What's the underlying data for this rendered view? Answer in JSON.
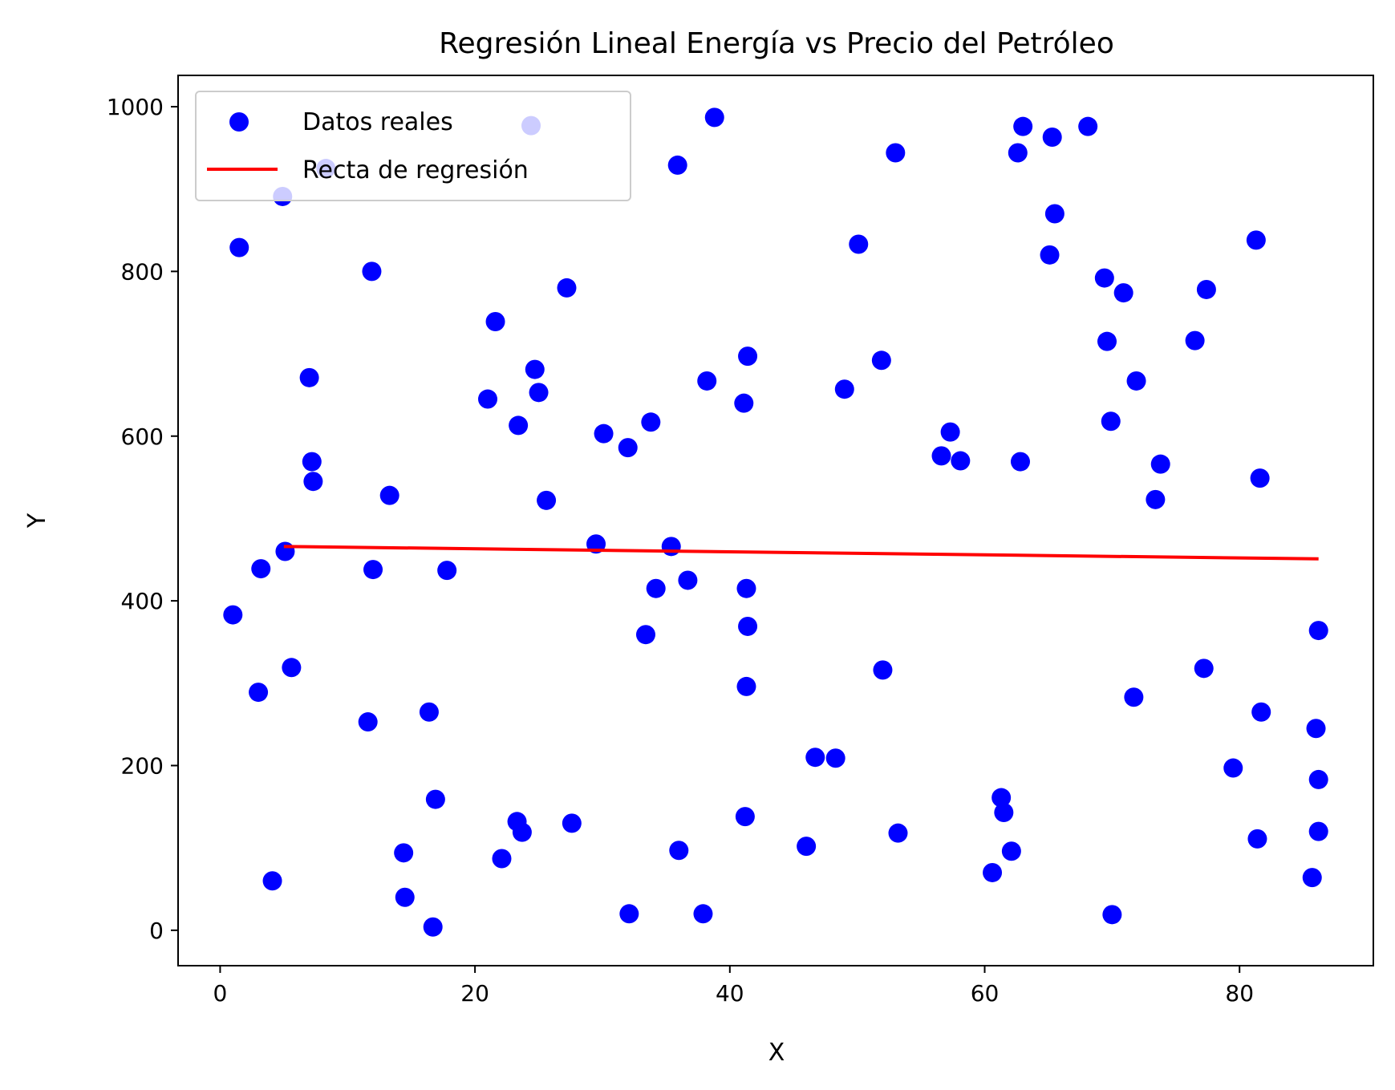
{
  "chart_data": {
    "type": "scatter",
    "title": "Regresión Lineal Energía vs Precio del Petróleo",
    "xlabel": "X",
    "ylabel": "Y",
    "xlim": [
      -3.3,
      90.5
    ],
    "ylim": [
      -43,
      1038
    ],
    "xticks": [
      0,
      20,
      40,
      60,
      80
    ],
    "yticks": [
      0,
      200,
      400,
      600,
      800,
      1000
    ],
    "xtick_labels": [
      "0",
      "20",
      "40",
      "60",
      "80"
    ],
    "ytick_labels": [
      "0",
      "200",
      "400",
      "600",
      "800",
      "1000"
    ],
    "legend_position": "top-left",
    "colors": {
      "points": "#0000ff",
      "line": "#ff0000"
    },
    "series": [
      {
        "name": "Datos reales",
        "kind": "scatter",
        "points": [
          [
            1.0,
            383
          ],
          [
            1.5,
            829
          ],
          [
            3.0,
            289
          ],
          [
            3.2,
            439
          ],
          [
            4.1,
            60
          ],
          [
            4.9,
            891
          ],
          [
            5.1,
            460
          ],
          [
            5.6,
            319
          ],
          [
            7.0,
            671
          ],
          [
            7.2,
            569
          ],
          [
            7.3,
            545
          ],
          [
            8.3,
            925
          ],
          [
            11.6,
            253
          ],
          [
            11.9,
            800
          ],
          [
            12.0,
            438
          ],
          [
            13.3,
            528
          ],
          [
            14.4,
            94
          ],
          [
            14.5,
            40
          ],
          [
            16.4,
            265
          ],
          [
            16.7,
            4
          ],
          [
            16.9,
            159
          ],
          [
            17.8,
            437
          ],
          [
            21.0,
            645
          ],
          [
            21.6,
            739
          ],
          [
            22.1,
            87
          ],
          [
            23.3,
            132
          ],
          [
            23.4,
            613
          ],
          [
            23.7,
            119
          ],
          [
            24.4,
            977
          ],
          [
            24.7,
            681
          ],
          [
            25.0,
            653
          ],
          [
            25.6,
            522
          ],
          [
            27.2,
            780
          ],
          [
            27.6,
            130
          ],
          [
            29.5,
            469
          ],
          [
            30.1,
            603
          ],
          [
            32.0,
            586
          ],
          [
            32.1,
            20
          ],
          [
            33.4,
            359
          ],
          [
            33.8,
            617
          ],
          [
            34.2,
            415
          ],
          [
            35.4,
            466
          ],
          [
            35.9,
            929
          ],
          [
            36.0,
            97
          ],
          [
            36.7,
            425
          ],
          [
            37.9,
            20
          ],
          [
            38.2,
            667
          ],
          [
            38.8,
            987
          ],
          [
            41.1,
            640
          ],
          [
            41.2,
            138
          ],
          [
            41.3,
            415
          ],
          [
            41.3,
            296
          ],
          [
            41.4,
            369
          ],
          [
            41.4,
            697
          ],
          [
            46.0,
            102
          ],
          [
            46.7,
            210
          ],
          [
            48.3,
            209
          ],
          [
            49.0,
            657
          ],
          [
            50.1,
            833
          ],
          [
            51.9,
            692
          ],
          [
            52.0,
            316
          ],
          [
            53.0,
            944
          ],
          [
            53.2,
            118
          ],
          [
            56.6,
            576
          ],
          [
            57.3,
            605
          ],
          [
            58.1,
            570
          ],
          [
            60.6,
            70
          ],
          [
            61.3,
            161
          ],
          [
            61.5,
            143
          ],
          [
            62.1,
            96
          ],
          [
            62.6,
            944
          ],
          [
            62.8,
            569
          ],
          [
            63.0,
            976
          ],
          [
            65.1,
            820
          ],
          [
            65.3,
            963
          ],
          [
            65.5,
            870
          ],
          [
            68.1,
            976
          ],
          [
            69.4,
            792
          ],
          [
            69.6,
            715
          ],
          [
            69.9,
            618
          ],
          [
            70.0,
            19
          ],
          [
            70.9,
            774
          ],
          [
            71.7,
            283
          ],
          [
            71.9,
            667
          ],
          [
            73.4,
            523
          ],
          [
            73.8,
            566
          ],
          [
            76.5,
            716
          ],
          [
            77.2,
            318
          ],
          [
            77.4,
            778
          ],
          [
            79.5,
            197
          ],
          [
            81.3,
            838
          ],
          [
            81.4,
            111
          ],
          [
            81.6,
            549
          ],
          [
            81.7,
            265
          ],
          [
            85.7,
            64
          ],
          [
            86.0,
            245
          ],
          [
            86.2,
            183
          ],
          [
            86.2,
            120
          ],
          [
            86.2,
            364
          ]
        ]
      },
      {
        "name": "Recta de regresión",
        "kind": "line",
        "points": [
          [
            5.0,
            466
          ],
          [
            86.2,
            451
          ]
        ]
      }
    ]
  }
}
